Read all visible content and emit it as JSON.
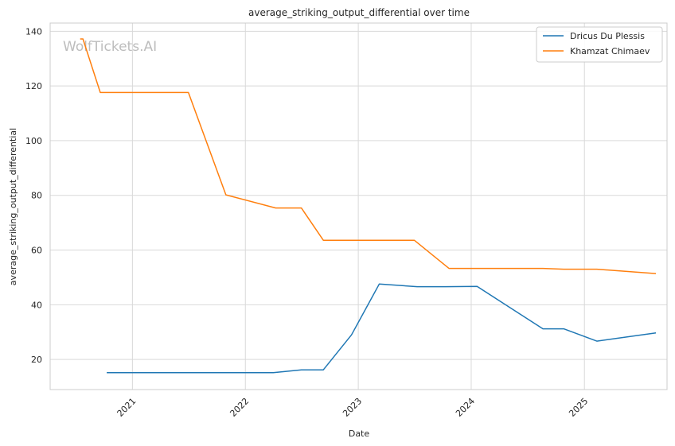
{
  "chart_data": {
    "type": "line",
    "title": "average_striking_output_differential over time",
    "xlabel": "Date",
    "ylabel": "average_striking_output_differential",
    "x_tick_labels": [
      "2021",
      "2022",
      "2023",
      "2024",
      "2025"
    ],
    "y_ticks": [
      20,
      40,
      60,
      80,
      100,
      120,
      140
    ],
    "ylim": [
      9,
      143
    ],
    "xlim": [
      "2020-04-10",
      "2025-09-25"
    ],
    "grid": true,
    "legend_position": "top-right",
    "watermark": "WolfTickets.AI",
    "series": [
      {
        "name": "Dricus Du Plessis",
        "color": "#1f77b4",
        "points": [
          {
            "x": "2020-10-10",
            "y": 15.2
          },
          {
            "x": "2021-06-10",
            "y": 15.2
          },
          {
            "x": "2022-04-01",
            "y": 15.2
          },
          {
            "x": "2022-07-01",
            "y": 16.2
          },
          {
            "x": "2022-09-10",
            "y": 16.2
          },
          {
            "x": "2022-12-10",
            "y": 29.0
          },
          {
            "x": "2023-03-10",
            "y": 47.6
          },
          {
            "x": "2023-07-10",
            "y": 46.6
          },
          {
            "x": "2023-10-10",
            "y": 46.6
          },
          {
            "x": "2024-01-20",
            "y": 46.7
          },
          {
            "x": "2024-08-20",
            "y": 31.2
          },
          {
            "x": "2024-10-26",
            "y": 31.2
          },
          {
            "x": "2025-02-10",
            "y": 26.7
          },
          {
            "x": "2025-08-20",
            "y": 29.7
          }
        ]
      },
      {
        "name": "Khamzat Chimaev",
        "color": "#ff7f0e",
        "points": [
          {
            "x": "2020-07-16",
            "y": 137.2
          },
          {
            "x": "2020-07-25",
            "y": 137.2
          },
          {
            "x": "2020-09-19",
            "y": 117.6
          },
          {
            "x": "2021-07-01",
            "y": 117.6
          },
          {
            "x": "2021-10-30",
            "y": 80.2
          },
          {
            "x": "2022-04-09",
            "y": 75.4
          },
          {
            "x": "2022-07-01",
            "y": 75.4
          },
          {
            "x": "2022-09-10",
            "y": 63.6
          },
          {
            "x": "2023-07-01",
            "y": 63.6
          },
          {
            "x": "2023-10-21",
            "y": 53.3
          },
          {
            "x": "2024-08-20",
            "y": 53.3
          },
          {
            "x": "2024-10-26",
            "y": 53.0
          },
          {
            "x": "2025-02-10",
            "y": 53.0
          },
          {
            "x": "2025-08-20",
            "y": 51.4
          }
        ]
      }
    ]
  }
}
